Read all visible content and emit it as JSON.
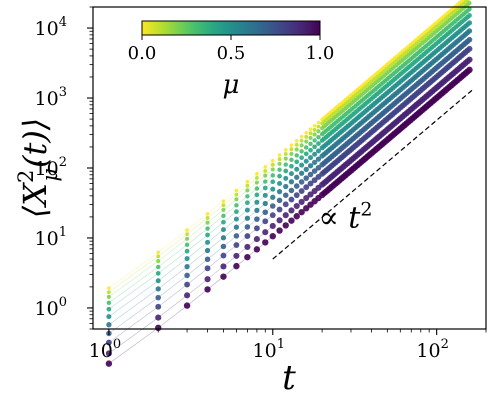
{
  "chart_data": {
    "type": "scatter",
    "title": "",
    "xlabel": "t",
    "ylabel_parts": {
      "left": "⟨",
      "X": "X",
      "sup": "2",
      "sub": "μ",
      "args": "(t)",
      "right": "⟩"
    },
    "x_scale": "log",
    "y_scale": "log",
    "xlim": [
      0.8,
      200
    ],
    "ylim": [
      0.5,
      20000
    ],
    "x_ticks": [
      1,
      10,
      100
    ],
    "y_ticks": [
      1,
      10,
      100,
      1000,
      10000
    ],
    "x_tick_labels": [
      {
        "base": "10",
        "exp": "0"
      },
      {
        "base": "10",
        "exp": "1"
      },
      {
        "base": "10",
        "exp": "2"
      }
    ],
    "y_tick_labels": [
      {
        "base": "10",
        "exp": "0"
      },
      {
        "base": "10",
        "exp": "1"
      },
      {
        "base": "10",
        "exp": "2"
      },
      {
        "base": "10",
        "exp": "3"
      },
      {
        "base": "10",
        "exp": "4"
      }
    ],
    "grid": false,
    "colorbar": {
      "label": "μ",
      "colormap": "viridis",
      "range": [
        0.0,
        1.0
      ],
      "ticks": [
        "0.0",
        "0.5",
        "1.0"
      ],
      "placement": "top-left"
    },
    "colormap_stops": [
      "#440154",
      "#482878",
      "#3e4989",
      "#31688e",
      "#26828e",
      "#1f9e89",
      "#35b779",
      "#6ece58",
      "#b5de2b",
      "#fde725"
    ],
    "series_mu": [
      0.0,
      0.1,
      0.2,
      0.3,
      0.4,
      0.5,
      0.6,
      0.7,
      0.8,
      0.9,
      1.0
    ],
    "series_coef": [
      1.2,
      1.05,
      0.9,
      0.74,
      0.6,
      0.47,
      0.36,
      0.27,
      0.2,
      0.14,
      0.1
    ],
    "series_t_start": [
      1,
      1,
      1,
      1,
      1,
      1,
      1,
      1,
      1,
      1,
      1
    ],
    "series_t_end": [
      160,
      160,
      160,
      160,
      160,
      160,
      160,
      160,
      160,
      160,
      160
    ],
    "reference_line": {
      "t_start": 10,
      "t_end": 165,
      "y_start": 5,
      "y_end": 1300,
      "style": "dashed",
      "color": "#000000"
    },
    "annotation": {
      "text_prefix": "∝ ",
      "text_var": "t",
      "text_exp": "2",
      "x": 19,
      "y": 14
    }
  }
}
